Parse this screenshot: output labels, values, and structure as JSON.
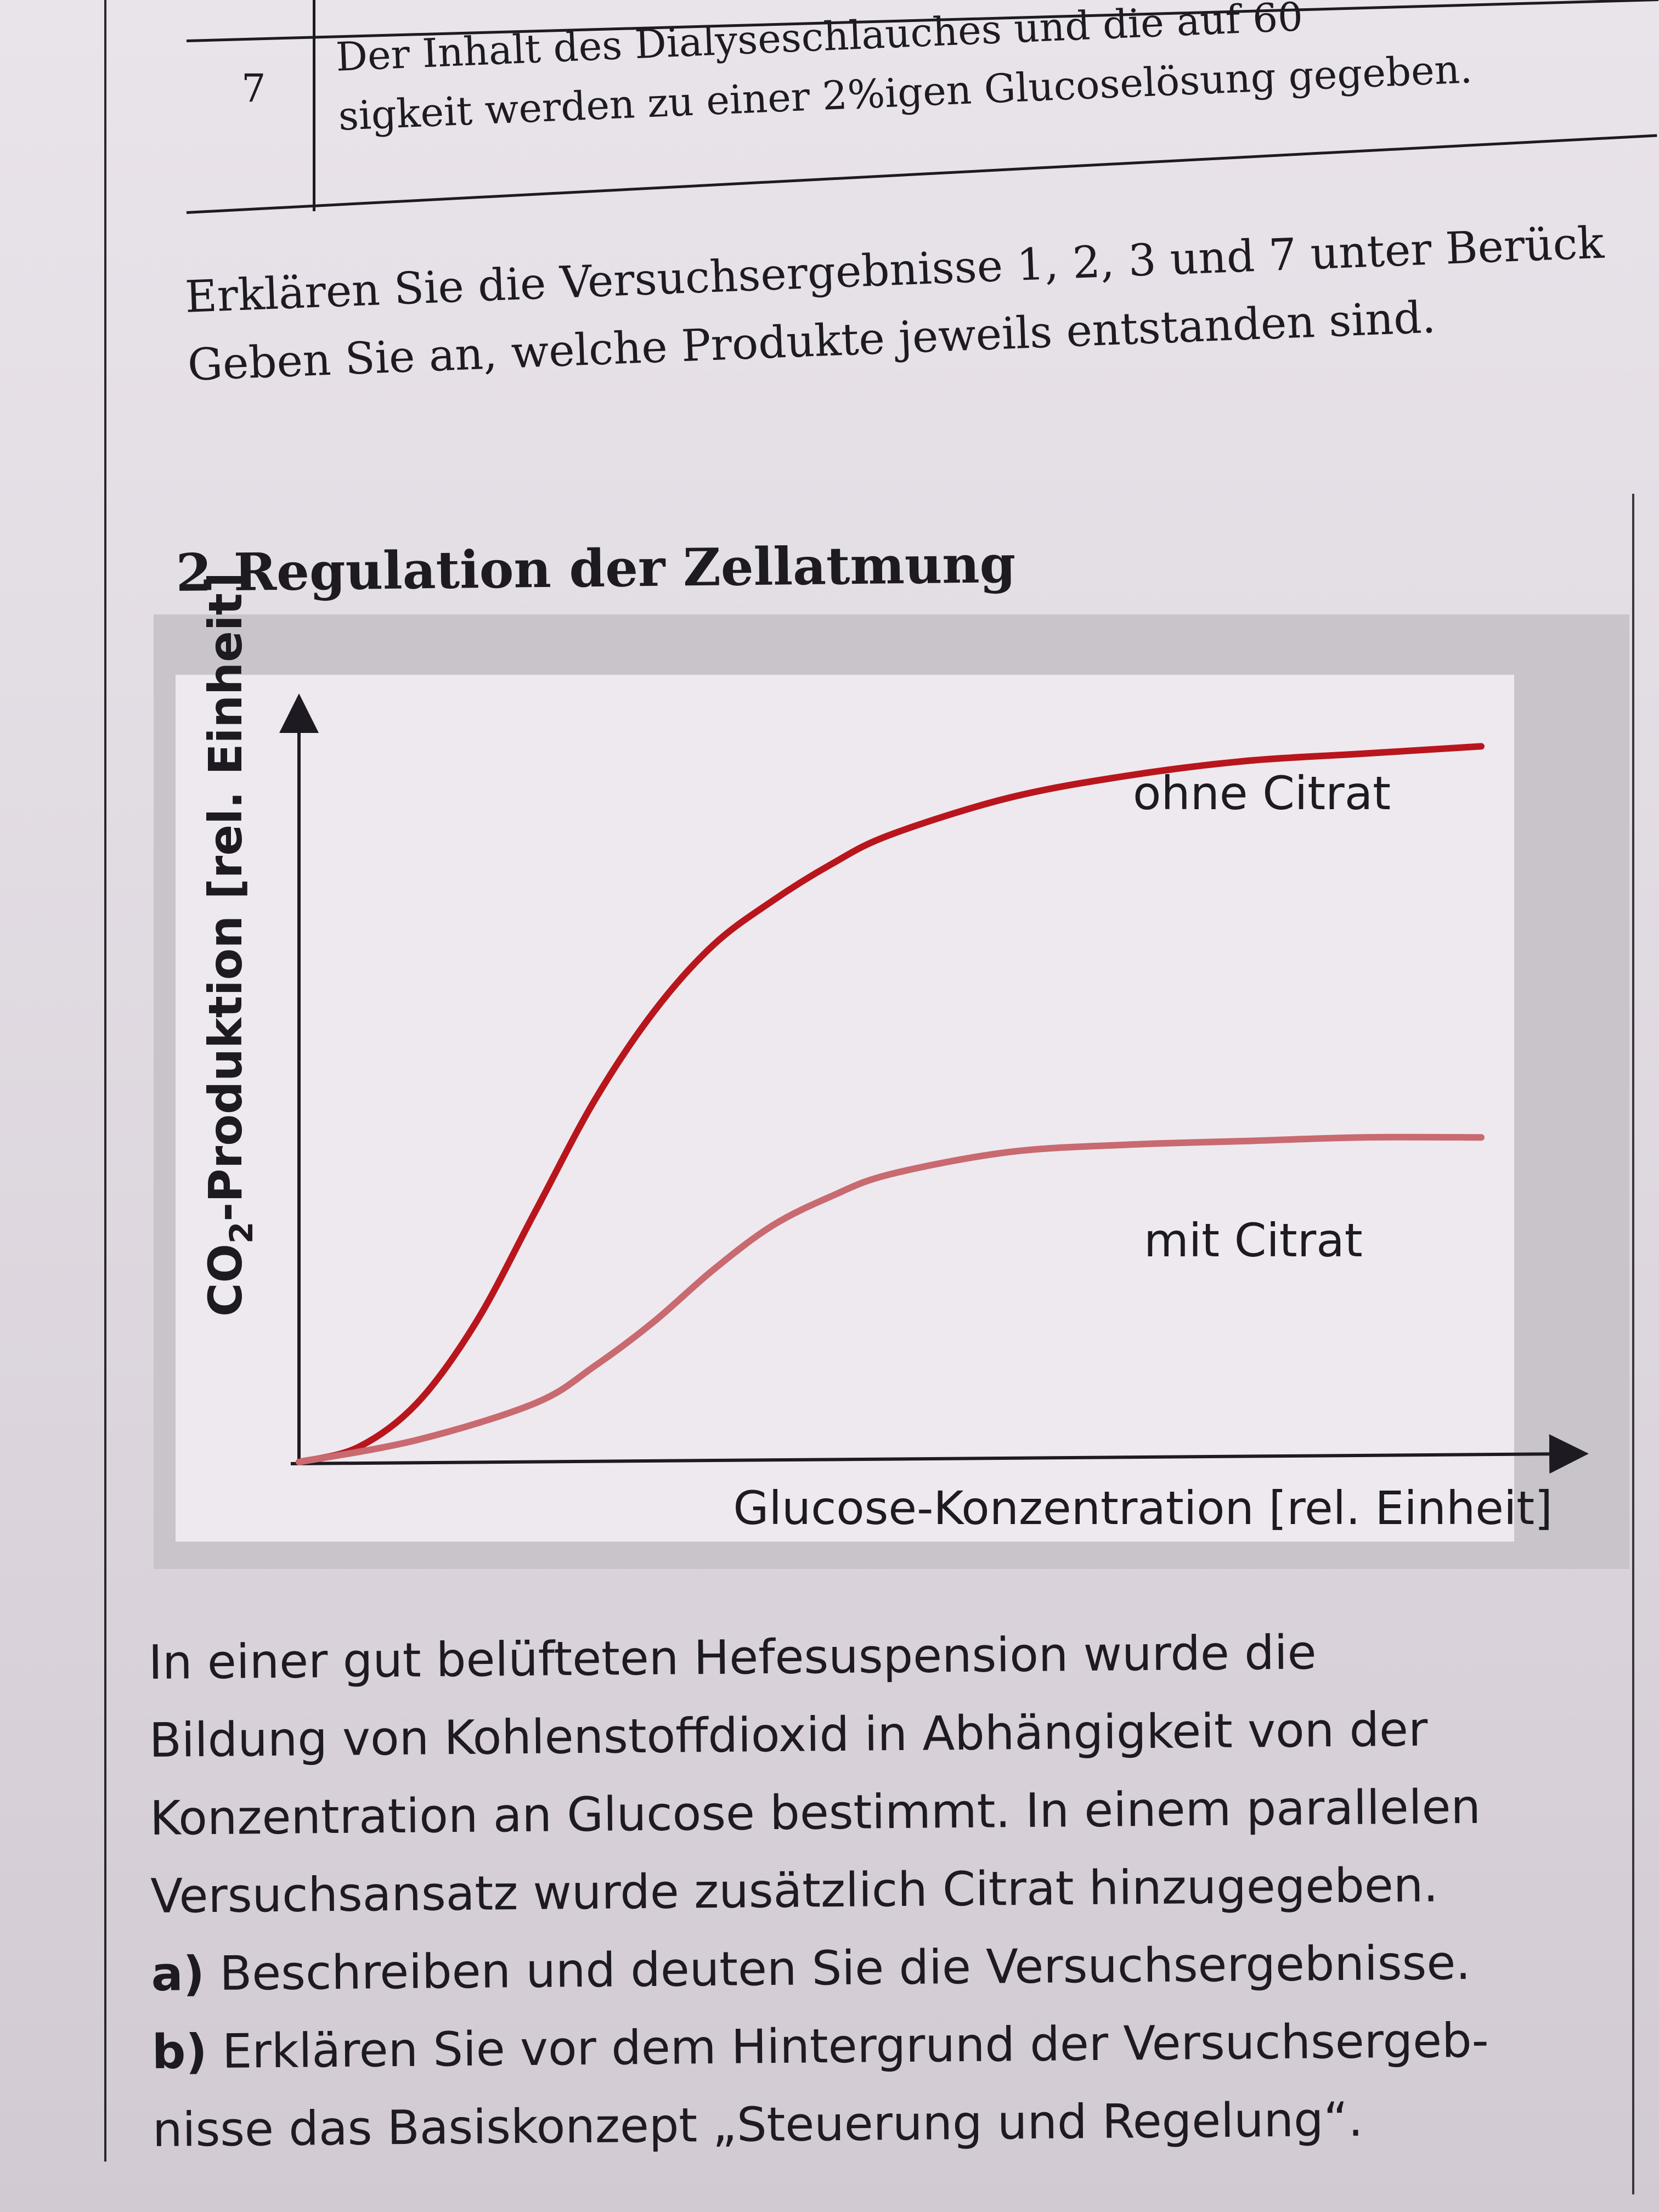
{
  "table": {
    "row_number": "7",
    "row_text_line1": "Der Inhalt des Dialyseschlauches und die auf 60",
    "row_text_line2": "sigkeit werden zu einer 2%igen Glucoselösung gegeben."
  },
  "task": {
    "line1": "Erklären Sie die Versuchsergebnisse 1, 2, 3 und 7 unter Berück",
    "line2": "Geben Sie an, welche Produkte jeweils entstanden sind."
  },
  "section": {
    "number": "2",
    "title": "Regulation der Zellatmung"
  },
  "chart_data": {
    "type": "line",
    "ylabel": "CO2-Produktion [rel. Einheit]",
    "ylabel_main": "CO",
    "ylabel_sub": "2",
    "ylabel_rest": "-Produktion [rel. Einheit]",
    "xlabel": "Glucose-Konzentration [rel. Einheit]",
    "grid": false,
    "xlim": [
      0,
      10
    ],
    "ylim": [
      0,
      10
    ],
    "series": [
      {
        "name": "ohne Citrat",
        "color": "#b8161c",
        "x": [
          0,
          0.5,
          1,
          1.5,
          2,
          2.5,
          3,
          3.5,
          4,
          4.5,
          5,
          6,
          7,
          8,
          9,
          10
        ],
        "y": [
          0,
          0.2,
          0.8,
          1.9,
          3.4,
          4.9,
          6.1,
          7.0,
          7.6,
          8.1,
          8.5,
          9.0,
          9.3,
          9.5,
          9.6,
          9.7
        ]
      },
      {
        "name": "mit Citrat",
        "color": "#c86a70",
        "x": [
          0,
          1,
          2,
          2.5,
          3,
          3.5,
          4,
          4.5,
          5,
          6,
          7,
          8,
          9,
          10
        ],
        "y": [
          0,
          0.3,
          0.8,
          1.3,
          1.9,
          2.6,
          3.2,
          3.6,
          3.9,
          4.2,
          4.3,
          4.35,
          4.4,
          4.4
        ]
      }
    ]
  },
  "body": {
    "line1": "In einer gut belüfteten Hefesuspension wurde die",
    "line2": "Bildung von Kohlenstoffdioxid in Abhängigkeit von der",
    "line3": "Konzentration an Glucose bestimmt. In einem parallelen",
    "line4": "Versuchsansatz wurde zusätzlich Citrat hinzugegeben.",
    "a_label": "a)",
    "a_text": "Beschreiben und deuten Sie die Versuchsergebnisse.",
    "b_label": "b)",
    "b_text_line1": "Erklären Sie vor dem Hintergrund der Versuchsergeb-",
    "b_text_line2": "nisse das Basiskonzept „Steuerung und Regelung“."
  }
}
